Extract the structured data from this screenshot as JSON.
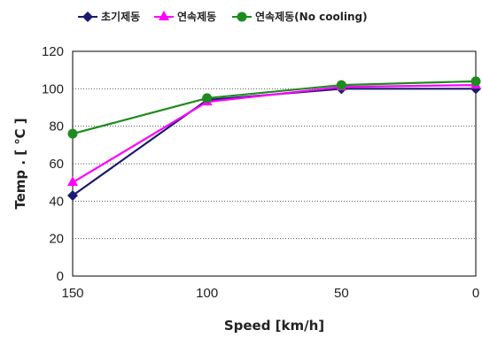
{
  "chart_data": {
    "type": "line",
    "xlabel": "Speed [km/h]",
    "ylabel": "Temp . [ ℃ ]",
    "x": [
      150,
      100,
      50,
      0
    ],
    "xlim": [
      150,
      0
    ],
    "ylim": [
      0,
      120
    ],
    "x_ticks": [
      "150",
      "100",
      "50",
      "0"
    ],
    "y_ticks": [
      "0",
      "20",
      "40",
      "60",
      "80",
      "100",
      "120"
    ],
    "grid": "horizontal dotted",
    "legend_position": "top",
    "series": [
      {
        "name": "초기제동",
        "values": [
          43,
          94,
          100,
          100
        ],
        "color": "#1a1a6e",
        "marker": "diamond"
      },
      {
        "name": "연속제동",
        "values": [
          50,
          93,
          101,
          102
        ],
        "color": "#ff00ff",
        "marker": "triangle"
      },
      {
        "name": "연속제동(No cooling)",
        "values": [
          76,
          95,
          102,
          104
        ],
        "color": "#1e8b1e",
        "marker": "circle"
      }
    ]
  }
}
